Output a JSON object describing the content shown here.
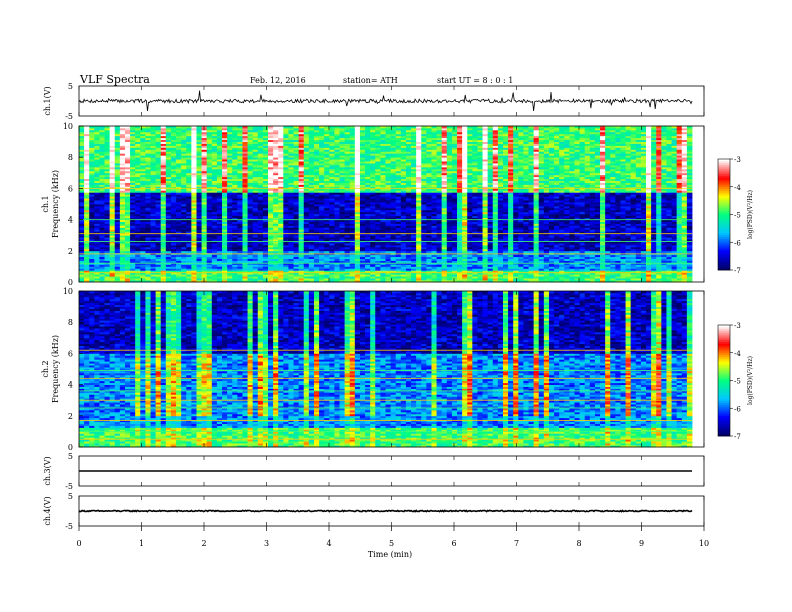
{
  "header": {
    "title": "VLF Spectra",
    "date": "Feb. 12, 2016",
    "station": "station= ATH",
    "start_ut": "start UT = 8 : 0 : 1"
  },
  "chart_data": [
    {
      "type": "line",
      "ylabel": "ch.1(V)",
      "ylim": [
        -5,
        5
      ],
      "ytick_labels": [
        "5",
        "-5"
      ],
      "baseline_value": 0,
      "noise_amplitude": 1.2,
      "grid": false
    },
    {
      "type": "heatmap",
      "channel_label": "ch.1",
      "ylabel": "Frequency (kHz)",
      "ylim": [
        0,
        10
      ],
      "ytick_labels": [
        "0",
        "2",
        "4",
        "6",
        "8",
        "10"
      ],
      "bands": [
        {
          "from_khz": 0.0,
          "to_khz": 0.7,
          "level": "strong"
        },
        {
          "from_khz": 0.7,
          "to_khz": 2.0,
          "level": "moderate"
        },
        {
          "from_khz": 2.0,
          "to_khz": 5.8,
          "level": "quiet"
        },
        {
          "from_khz": 5.8,
          "to_khz": 10.0,
          "level": "strong"
        }
      ],
      "narrowband_lines_khz": [
        0.6,
        1.2,
        1.8,
        2.6,
        3.1,
        4.0,
        6.0
      ],
      "colorbar": {
        "label": "log(PSD)(V²/Hz)",
        "range": [
          -7,
          -3
        ],
        "tick_labels": [
          "-3",
          "-4",
          "-5",
          "-6",
          "-7"
        ]
      }
    },
    {
      "type": "heatmap",
      "channel_label": "ch.2",
      "ylabel": "Frequency (kHz)",
      "ylim": [
        0,
        10
      ],
      "ytick_labels": [
        "0",
        "2",
        "4",
        "6",
        "8",
        "10"
      ],
      "bands": [
        {
          "from_khz": 0.0,
          "to_khz": 1.2,
          "level": "strong"
        },
        {
          "from_khz": 1.2,
          "to_khz": 3.0,
          "level": "moderate"
        },
        {
          "from_khz": 3.0,
          "to_khz": 6.0,
          "level": "moderate"
        },
        {
          "from_khz": 6.0,
          "to_khz": 10.0,
          "level": "quiet"
        }
      ],
      "narrowband_lines_khz": [
        0.5,
        1.0,
        1.7,
        2.5,
        3.0,
        3.6,
        4.4,
        4.9,
        6.2
      ],
      "colorbar": {
        "label": "log(PSD)(V²/Hz)",
        "range": [
          -7,
          -3
        ],
        "tick_labels": [
          "-3",
          "-4",
          "-5",
          "-6",
          "-7"
        ]
      }
    },
    {
      "type": "line",
      "ylabel": "ch.3(V)",
      "ylim": [
        -5,
        5
      ],
      "ytick_labels": [
        "5",
        "-5"
      ],
      "baseline_value": 0,
      "noise_amplitude": 0,
      "grid": false
    },
    {
      "type": "line",
      "ylabel": "ch.4(V)",
      "ylim": [
        -5,
        5
      ],
      "ytick_labels": [
        "5",
        "-5"
      ],
      "baseline_value": 0,
      "noise_amplitude": 0.4,
      "grid": false
    }
  ],
  "x_axis": {
    "xlabel": "Time (min)",
    "xlim": [
      0,
      10
    ],
    "tick_labels": [
      "0",
      "1",
      "2",
      "3",
      "4",
      "5",
      "6",
      "7",
      "8",
      "9",
      "10"
    ]
  },
  "colors": {
    "colormap": [
      "#000066",
      "#0000ff",
      "#00c8ff",
      "#00ff80",
      "#ffff00",
      "#ff0000",
      "#ffffff"
    ]
  }
}
